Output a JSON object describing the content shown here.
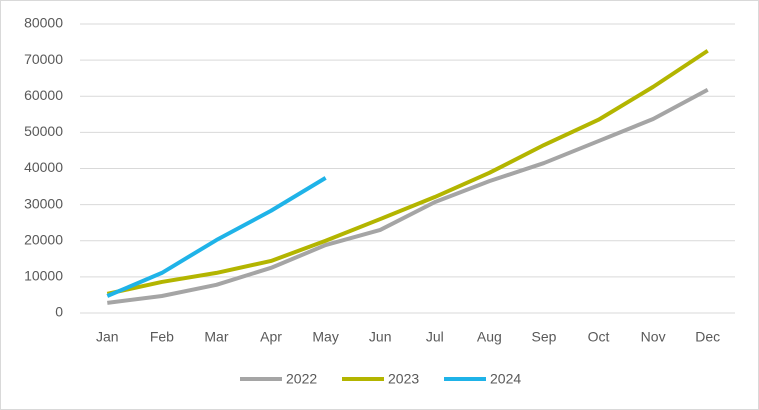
{
  "chart_data": {
    "type": "line",
    "categories": [
      "Jan",
      "Feb",
      "Mar",
      "Apr",
      "May",
      "Jun",
      "Jul",
      "Aug",
      "Sep",
      "Oct",
      "Nov",
      "Dec"
    ],
    "series": [
      {
        "name": "2022",
        "color": "#a5a5a5",
        "values": [
          2800,
          4700,
          7800,
          12500,
          18800,
          23000,
          30700,
          36500,
          41500,
          47600,
          53700,
          61800
        ]
      },
      {
        "name": "2023",
        "color": "#b3b500",
        "values": [
          5300,
          8600,
          11100,
          14400,
          20000,
          26000,
          32100,
          38800,
          46500,
          53500,
          62600,
          72600
        ]
      },
      {
        "name": "2024",
        "color": "#1fb3e8",
        "values": [
          4700,
          11100,
          20200,
          28300,
          37400,
          null,
          null,
          null,
          null,
          null,
          null,
          null
        ]
      }
    ],
    "ylim": [
      0,
      80000
    ],
    "yticks": [
      0,
      10000,
      20000,
      30000,
      40000,
      50000,
      60000,
      70000,
      80000
    ],
    "grid": true,
    "legend": "bottom"
  }
}
